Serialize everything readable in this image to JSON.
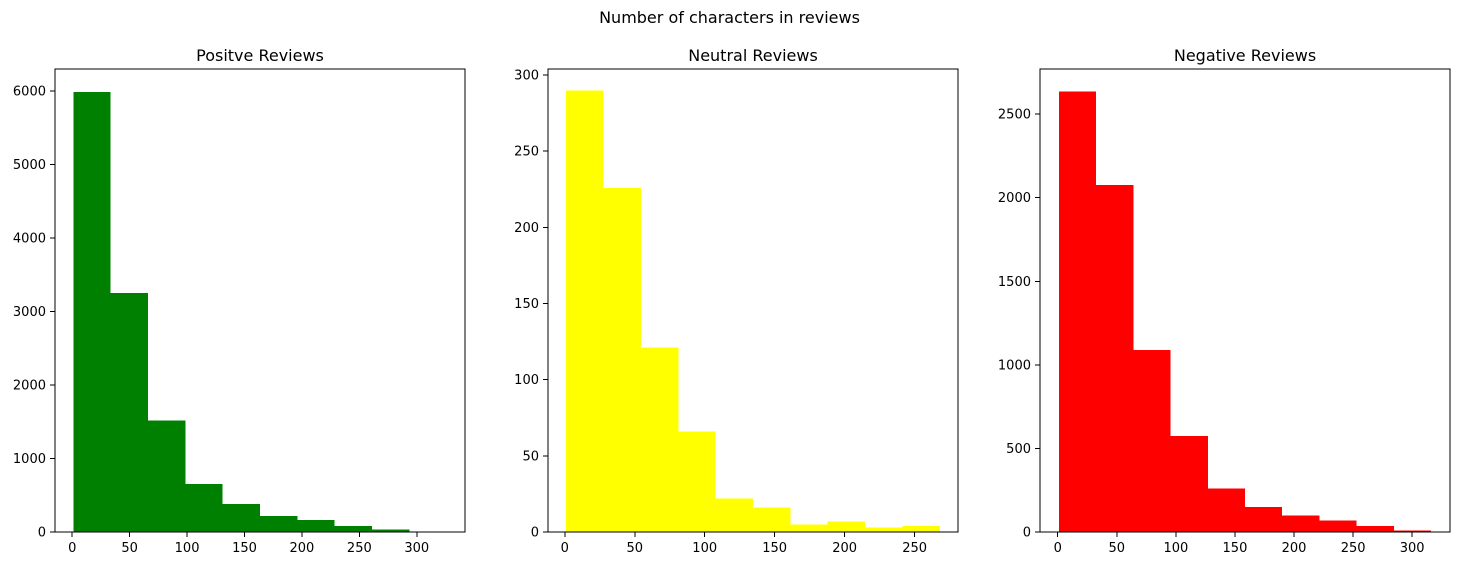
{
  "suptitle": "Number of characters in reviews",
  "chart_data": [
    {
      "type": "bar",
      "title": "Positve Reviews",
      "xlabel": "",
      "ylabel": "",
      "color": "#008000",
      "bin_edges": [
        1,
        33.5,
        66,
        98.5,
        131,
        163.5,
        196,
        228.5,
        261,
        293.5,
        326
      ],
      "values": [
        5990,
        3250,
        1520,
        650,
        380,
        215,
        160,
        80,
        35,
        5
      ],
      "xlim": [
        -15,
        342
      ],
      "ylim": [
        0,
        6300
      ],
      "xticks": [
        0,
        50,
        100,
        150,
        200,
        250,
        300
      ],
      "yticks": [
        0,
        1000,
        2000,
        3000,
        4000,
        5000,
        6000
      ],
      "grid": false
    },
    {
      "type": "bar",
      "title": "Neutral Reviews",
      "xlabel": "",
      "ylabel": "",
      "color": "#ffff00",
      "bin_edges": [
        1,
        27.7,
        54.4,
        81.1,
        107.8,
        134.5,
        161.2,
        187.9,
        214.6,
        241.3,
        268
      ],
      "values": [
        290,
        226,
        121,
        66,
        22,
        16,
        5,
        7,
        3,
        4
      ],
      "xlim": [
        -12,
        281
      ],
      "ylim": [
        0,
        304
      ],
      "xticks": [
        0,
        50,
        100,
        150,
        200,
        250
      ],
      "yticks": [
        0,
        50,
        100,
        150,
        200,
        250,
        300
      ],
      "grid": false
    },
    {
      "type": "bar",
      "title": "Negative Reviews",
      "xlabel": "",
      "ylabel": "",
      "color": "#ff0000",
      "bin_edges": [
        1,
        32.5,
        64,
        95.5,
        127,
        158.5,
        190,
        221.5,
        253,
        284.5,
        316
      ],
      "values": [
        2635,
        2075,
        1090,
        575,
        260,
        150,
        100,
        70,
        35,
        10
      ],
      "xlim": [
        -15,
        332
      ],
      "ylim": [
        0,
        2770
      ],
      "xticks": [
        0,
        50,
        100,
        150,
        200,
        250,
        300
      ],
      "yticks": [
        0,
        500,
        1000,
        1500,
        2000,
        2500
      ],
      "grid": false
    }
  ]
}
